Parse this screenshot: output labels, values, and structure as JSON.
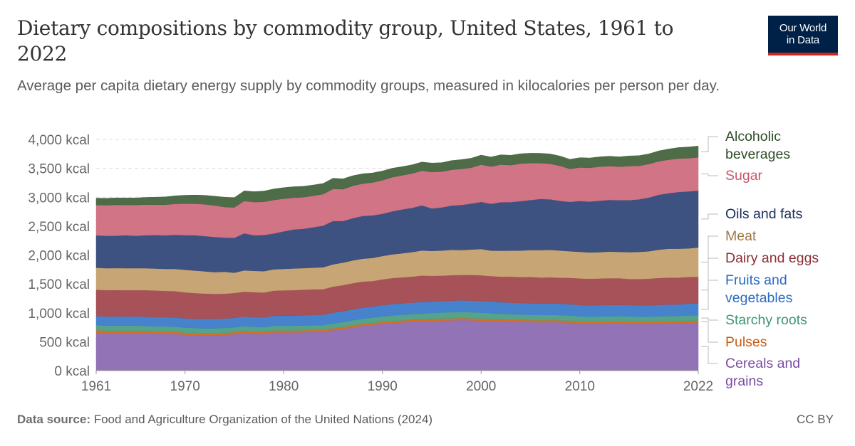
{
  "title": "Dietary compositions by commodity group, United States, 1961 to 2022",
  "subtitle": "Average per capita dietary energy supply by commodity groups, measured in kilocalories per person per day.",
  "logo": {
    "line1": "Our World",
    "line2": "in Data"
  },
  "footer": {
    "source_label": "Data source:",
    "source_text": "Food and Agriculture Organization of the United Nations (2024)",
    "license": "CC BY"
  },
  "chart_data": {
    "type": "area",
    "stacked": true,
    "x_tick_labels": [
      "1961",
      "1970",
      "1980",
      "1990",
      "2000",
      "2010",
      "2022"
    ],
    "y_tick_labels": [
      "0 kcal",
      "500 kcal",
      "1,000 kcal",
      "1,500 kcal",
      "2,000 kcal",
      "2,500 kcal",
      "3,000 kcal",
      "3,500 kcal",
      "4,000 kcal"
    ],
    "ylim": [
      0,
      4000
    ],
    "xlim": [
      1961,
      2022
    ],
    "y_unit": "kcal",
    "grid": "horizontal dashed",
    "legend_placement": "right, labels aligned to series",
    "x": [
      1961,
      1962,
      1963,
      1964,
      1965,
      1966,
      1967,
      1968,
      1969,
      1970,
      1971,
      1972,
      1973,
      1974,
      1975,
      1976,
      1977,
      1978,
      1979,
      1980,
      1981,
      1982,
      1983,
      1984,
      1985,
      1986,
      1987,
      1988,
      1989,
      1990,
      1991,
      1992,
      1993,
      1994,
      1995,
      1996,
      1997,
      1998,
      1999,
      2000,
      2001,
      2002,
      2003,
      2004,
      2005,
      2006,
      2007,
      2008,
      2009,
      2010,
      2011,
      2012,
      2013,
      2014,
      2015,
      2016,
      2017,
      2018,
      2019,
      2020,
      2021,
      2022
    ],
    "series": [
      {
        "name": "Cereals and grains",
        "color": "#8c6bb1",
        "values": [
          660,
          650,
          650,
          650,
          650,
          645,
          640,
          640,
          635,
          620,
          615,
          610,
          610,
          620,
          630,
          650,
          640,
          635,
          660,
          660,
          660,
          665,
          670,
          670,
          700,
          720,
          750,
          775,
          790,
          810,
          825,
          835,
          845,
          855,
          860,
          865,
          870,
          875,
          870,
          865,
          860,
          850,
          845,
          840,
          840,
          835,
          840,
          835,
          830,
          815,
          810,
          815,
          815,
          820,
          815,
          810,
          810,
          815,
          820,
          820,
          830,
          830
        ]
      },
      {
        "name": "Pulses",
        "color": "#d2691e",
        "values": [
          40,
          40,
          40,
          39,
          39,
          38,
          38,
          37,
          37,
          36,
          36,
          35,
          35,
          35,
          35,
          35,
          34,
          34,
          34,
          34,
          34,
          34,
          34,
          34,
          34,
          34,
          34,
          34,
          34,
          34,
          34,
          34,
          34,
          34,
          34,
          34,
          34,
          34,
          34,
          34,
          34,
          34,
          34,
          34,
          34,
          34,
          34,
          34,
          34,
          34,
          34,
          34,
          34,
          34,
          34,
          34,
          34,
          34,
          34,
          35,
          35,
          35
        ]
      },
      {
        "name": "Starchy roots",
        "color": "#4c9e84",
        "values": [
          90,
          90,
          90,
          90,
          90,
          90,
          88,
          88,
          88,
          88,
          86,
          86,
          86,
          84,
          84,
          84,
          84,
          82,
          82,
          82,
          82,
          82,
          82,
          82,
          84,
          86,
          88,
          90,
          92,
          94,
          96,
          98,
          100,
          102,
          104,
          106,
          108,
          108,
          106,
          104,
          102,
          100,
          98,
          96,
          94,
          93,
          92,
          91,
          90,
          90,
          90,
          90,
          90,
          90,
          90,
          90,
          90,
          90,
          90,
          90,
          90,
          90
        ]
      },
      {
        "name": "Fruits and vegetables",
        "color": "#3d7cc9",
        "values": [
          155,
          157,
          158,
          158,
          158,
          159,
          160,
          160,
          160,
          160,
          160,
          162,
          162,
          162,
          164,
          166,
          168,
          170,
          172,
          174,
          176,
          178,
          180,
          182,
          186,
          188,
          190,
          192,
          194,
          195,
          196,
          197,
          197,
          198,
          198,
          198,
          198,
          199,
          200,
          201,
          200,
          200,
          199,
          198,
          198,
          198,
          198,
          197,
          196,
          196,
          195,
          195,
          195,
          195,
          195,
          195,
          196,
          198,
          200,
          200,
          205,
          210
        ]
      },
      {
        "name": "Dairy and eggs",
        "color": "#a2484f",
        "values": [
          455,
          455,
          455,
          455,
          455,
          460,
          460,
          455,
          455,
          450,
          445,
          440,
          435,
          430,
          430,
          430,
          430,
          430,
          435,
          440,
          440,
          440,
          440,
          440,
          450,
          450,
          450,
          450,
          440,
          445,
          450,
          450,
          450,
          455,
          445,
          440,
          440,
          440,
          445,
          445,
          440,
          440,
          450,
          450,
          455,
          450,
          450,
          450,
          455,
          460,
          460,
          460,
          465,
          460,
          450,
          455,
          460,
          465,
          465,
          465,
          460,
          460
        ]
      },
      {
        "name": "Meat",
        "color": "#c4a06e",
        "values": [
          380,
          380,
          380,
          380,
          380,
          380,
          380,
          380,
          385,
          390,
          390,
          385,
          375,
          380,
          350,
          370,
          370,
          370,
          370,
          370,
          375,
          375,
          375,
          380,
          385,
          390,
          395,
          395,
          400,
          405,
          410,
          415,
          425,
          435,
          430,
          435,
          440,
          430,
          440,
          455,
          440,
          450,
          450,
          460,
          465,
          475,
          475,
          470,
          460,
          460,
          455,
          455,
          460,
          455,
          465,
          470,
          475,
          490,
          500,
          500,
          495,
          505
        ]
      },
      {
        "name": "Oils and fats",
        "color": "#34497a",
        "values": [
          560,
          560,
          560,
          570,
          560,
          570,
          580,
          580,
          590,
          600,
          610,
          610,
          610,
          590,
          605,
          640,
          615,
          625,
          620,
          650,
          675,
          680,
          700,
          720,
          750,
          720,
          730,
          740,
          735,
          730,
          745,
          760,
          765,
          780,
          735,
          745,
          765,
          780,
          795,
          815,
          810,
          840,
          840,
          855,
          865,
          885,
          875,
          860,
          855,
          880,
          880,
          890,
          895,
          895,
          900,
          910,
          930,
          950,
          960,
          980,
          985,
          985
        ]
      },
      {
        "name": "Sugar",
        "color": "#cf6d7e",
        "values": [
          525,
          530,
          535,
          525,
          535,
          530,
          525,
          530,
          535,
          545,
          545,
          550,
          545,
          530,
          525,
          560,
          575,
          575,
          580,
          565,
          550,
          545,
          545,
          545,
          555,
          550,
          560,
          560,
          570,
          580,
          590,
          590,
          595,
          600,
          630,
          620,
          620,
          625,
          620,
          645,
          645,
          650,
          640,
          650,
          640,
          620,
          615,
          605,
          570,
          580,
          585,
          590,
          585,
          580,
          590,
          580,
          580,
          580,
          580,
          580,
          575,
          575
        ]
      },
      {
        "name": "Alcoholic beverages",
        "color": "#45643d",
        "values": [
          120,
          120,
          120,
          120,
          120,
          125,
          130,
          135,
          140,
          145,
          150,
          155,
          160,
          170,
          170,
          175,
          180,
          185,
          190,
          190,
          190,
          190,
          185,
          185,
          185,
          180,
          175,
          170,
          165,
          160,
          155,
          150,
          150,
          150,
          155,
          155,
          160,
          160,
          165,
          165,
          165,
          170,
          170,
          170,
          170,
          170,
          170,
          170,
          165,
          170,
          170,
          170,
          170,
          170,
          175,
          175,
          175,
          180,
          185,
          190,
          195,
          195
        ]
      }
    ]
  }
}
